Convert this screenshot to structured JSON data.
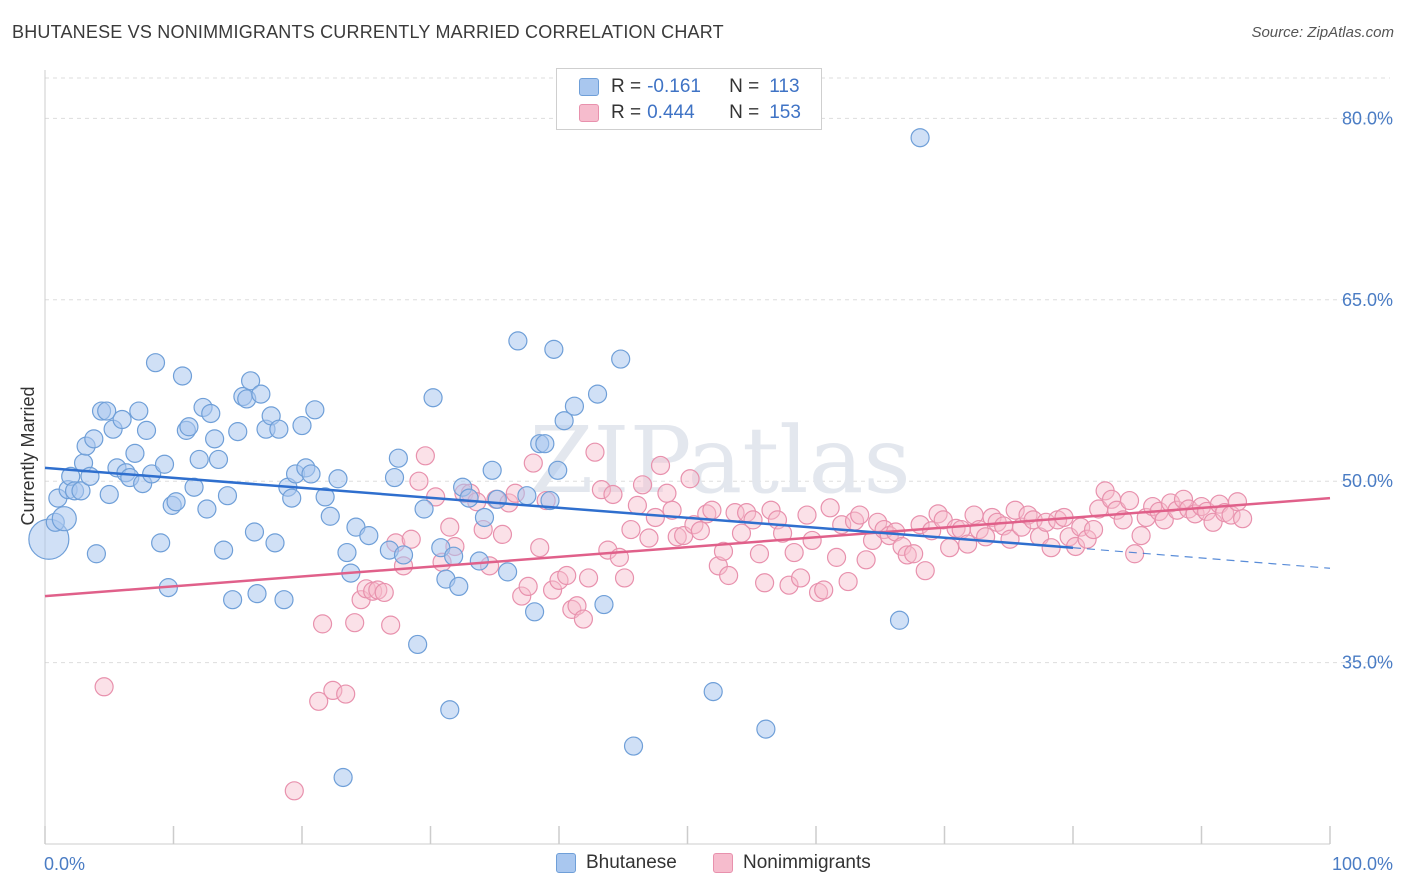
{
  "title": "BHUTANESE VS NONIMMIGRANTS CURRENTLY MARRIED CORRELATION CHART",
  "source": "Source: ZipAtlas.com",
  "watermark": "ZIPatlas",
  "colors": {
    "blue_fill": "#a9c7ef",
    "blue_stroke": "#6f9fd8",
    "blue_line": "#2f6fce",
    "pink_fill": "#f6bccd",
    "pink_stroke": "#e891ad",
    "pink_line": "#e0608a",
    "grid": "#dddddd",
    "axis_label": "#4a7cc4"
  },
  "legend_top": [
    {
      "series": "Bhutanese",
      "r_label": "R =",
      "r": "-0.161",
      "n_label": "N =",
      "n": "113"
    },
    {
      "series": "Nonimmigrants",
      "r_label": "R =",
      "r": "0.444",
      "n_label": "N =",
      "n": "153"
    }
  ],
  "chart_data": {
    "type": "scatter",
    "title": "BHUTANESE VS NONIMMIGRANTS CURRENTLY MARRIED CORRELATION CHART",
    "xlabel": "",
    "ylabel": "Currently Married",
    "xlim": [
      0,
      100
    ],
    "ylim": [
      20.0,
      84.0
    ],
    "x_tick_labels": [
      "0.0%",
      "100.0%"
    ],
    "y_ticks": [
      35.0,
      50.0,
      65.0,
      80.0
    ],
    "y_tick_labels": [
      "35.0%",
      "50.0%",
      "65.0%",
      "80.0%"
    ],
    "grid": true,
    "legend_position": "bottom",
    "series": [
      {
        "name": "Bhutanese",
        "trend": {
          "x": [
            0,
            80
          ],
          "y": [
            51.1,
            44.5
          ],
          "dashed_to": [
            100,
            42.8
          ]
        },
        "points": [
          [
            0.3,
            45.2
          ],
          [
            0.8,
            46.6
          ],
          [
            1.0,
            48.6
          ],
          [
            1.5,
            46.9
          ],
          [
            1.8,
            49.3
          ],
          [
            2.0,
            50.4
          ],
          [
            2.3,
            49.2
          ],
          [
            2.8,
            49.2
          ],
          [
            3.0,
            51.5
          ],
          [
            3.2,
            52.9
          ],
          [
            3.5,
            50.4
          ],
          [
            3.8,
            53.5
          ],
          [
            4.0,
            44.0
          ],
          [
            4.4,
            55.8
          ],
          [
            4.8,
            55.8
          ],
          [
            5.0,
            48.9
          ],
          [
            5.3,
            54.3
          ],
          [
            5.6,
            51.1
          ],
          [
            6.0,
            55.1
          ],
          [
            6.3,
            50.7
          ],
          [
            6.6,
            50.3
          ],
          [
            7.0,
            52.3
          ],
          [
            7.3,
            55.8
          ],
          [
            7.6,
            49.8
          ],
          [
            7.9,
            54.2
          ],
          [
            8.3,
            50.6
          ],
          [
            8.6,
            59.8
          ],
          [
            9.0,
            44.9
          ],
          [
            9.3,
            51.4
          ],
          [
            9.6,
            41.2
          ],
          [
            9.9,
            48.0
          ],
          [
            10.2,
            48.3
          ],
          [
            10.7,
            58.7
          ],
          [
            11.0,
            54.2
          ],
          [
            11.2,
            54.5
          ],
          [
            11.6,
            49.5
          ],
          [
            12.0,
            51.8
          ],
          [
            12.3,
            56.1
          ],
          [
            12.6,
            47.7
          ],
          [
            12.9,
            55.6
          ],
          [
            13.2,
            53.5
          ],
          [
            13.5,
            51.8
          ],
          [
            13.9,
            44.3
          ],
          [
            14.2,
            48.8
          ],
          [
            14.6,
            40.2
          ],
          [
            15.0,
            54.1
          ],
          [
            15.4,
            57.0
          ],
          [
            15.7,
            56.8
          ],
          [
            16.0,
            58.3
          ],
          [
            16.3,
            45.8
          ],
          [
            16.5,
            40.7
          ],
          [
            16.8,
            57.2
          ],
          [
            17.2,
            54.3
          ],
          [
            17.6,
            55.4
          ],
          [
            17.9,
            44.9
          ],
          [
            18.2,
            54.3
          ],
          [
            18.6,
            40.2
          ],
          [
            18.9,
            49.5
          ],
          [
            19.2,
            48.6
          ],
          [
            19.5,
            50.6
          ],
          [
            20.0,
            54.6
          ],
          [
            20.3,
            51.1
          ],
          [
            20.7,
            50.6
          ],
          [
            21.0,
            55.9
          ],
          [
            21.8,
            48.7
          ],
          [
            22.2,
            47.1
          ],
          [
            22.8,
            50.2
          ],
          [
            23.2,
            25.5
          ],
          [
            23.5,
            44.1
          ],
          [
            23.8,
            42.4
          ],
          [
            24.2,
            46.2
          ],
          [
            25.2,
            45.5
          ],
          [
            26.8,
            44.3
          ],
          [
            27.2,
            50.3
          ],
          [
            27.5,
            51.9
          ],
          [
            27.9,
            43.9
          ],
          [
            29.0,
            36.5
          ],
          [
            29.5,
            47.7
          ],
          [
            30.2,
            56.9
          ],
          [
            30.8,
            44.5
          ],
          [
            31.2,
            41.9
          ],
          [
            31.5,
            31.1
          ],
          [
            31.8,
            43.8
          ],
          [
            32.2,
            41.3
          ],
          [
            32.5,
            49.5
          ],
          [
            33.0,
            48.6
          ],
          [
            33.8,
            43.4
          ],
          [
            34.2,
            47.0
          ],
          [
            34.8,
            50.9
          ],
          [
            35.2,
            48.5
          ],
          [
            36.0,
            42.5
          ],
          [
            36.8,
            61.6
          ],
          [
            37.5,
            48.8
          ],
          [
            38.1,
            39.2
          ],
          [
            38.5,
            53.1
          ],
          [
            38.9,
            53.1
          ],
          [
            39.3,
            48.4
          ],
          [
            39.6,
            60.9
          ],
          [
            39.9,
            50.9
          ],
          [
            40.4,
            55.0
          ],
          [
            41.2,
            56.2
          ],
          [
            43.0,
            57.2
          ],
          [
            43.5,
            39.8
          ],
          [
            44.8,
            60.1
          ],
          [
            45.8,
            28.1
          ],
          [
            52.0,
            32.6
          ],
          [
            56.1,
            29.5
          ],
          [
            66.5,
            38.5
          ],
          [
            68.1,
            78.4
          ]
        ]
      },
      {
        "name": "Nonimmigrants",
        "trend": {
          "x": [
            0,
            100
          ],
          "y": [
            40.5,
            48.6
          ]
        },
        "points": [
          [
            4.6,
            33.0
          ],
          [
            19.4,
            24.4
          ],
          [
            21.3,
            31.8
          ],
          [
            21.6,
            38.2
          ],
          [
            22.4,
            32.7
          ],
          [
            23.4,
            32.4
          ],
          [
            24.1,
            38.3
          ],
          [
            24.6,
            40.2
          ],
          [
            25.0,
            41.1
          ],
          [
            25.5,
            40.9
          ],
          [
            25.9,
            41.0
          ],
          [
            26.4,
            40.8
          ],
          [
            26.9,
            38.1
          ],
          [
            27.3,
            44.9
          ],
          [
            27.9,
            43.0
          ],
          [
            28.5,
            45.2
          ],
          [
            29.1,
            50.0
          ],
          [
            29.6,
            52.1
          ],
          [
            30.4,
            48.7
          ],
          [
            30.9,
            43.3
          ],
          [
            31.5,
            46.2
          ],
          [
            31.9,
            44.6
          ],
          [
            32.6,
            49.0
          ],
          [
            33.1,
            49.0
          ],
          [
            33.6,
            48.3
          ],
          [
            34.1,
            46.0
          ],
          [
            34.6,
            43.0
          ],
          [
            35.1,
            48.5
          ],
          [
            35.6,
            45.6
          ],
          [
            36.1,
            48.2
          ],
          [
            36.6,
            49.0
          ],
          [
            37.1,
            40.5
          ],
          [
            37.6,
            41.3
          ],
          [
            38.0,
            51.5
          ],
          [
            38.5,
            44.5
          ],
          [
            39.0,
            48.4
          ],
          [
            39.5,
            41.0
          ],
          [
            40.0,
            41.8
          ],
          [
            40.6,
            42.2
          ],
          [
            41.0,
            39.4
          ],
          [
            41.4,
            39.7
          ],
          [
            41.9,
            38.6
          ],
          [
            42.3,
            42.0
          ],
          [
            42.8,
            52.4
          ],
          [
            43.3,
            49.3
          ],
          [
            43.8,
            44.3
          ],
          [
            44.2,
            48.9
          ],
          [
            44.7,
            43.7
          ],
          [
            45.1,
            42.0
          ],
          [
            45.6,
            46.0
          ],
          [
            46.1,
            48.0
          ],
          [
            46.5,
            49.7
          ],
          [
            47.0,
            45.3
          ],
          [
            47.5,
            47.0
          ],
          [
            47.9,
            51.3
          ],
          [
            48.4,
            49.0
          ],
          [
            48.8,
            47.6
          ],
          [
            49.2,
            45.4
          ],
          [
            49.7,
            45.5
          ],
          [
            50.2,
            50.2
          ],
          [
            50.5,
            46.4
          ],
          [
            51.0,
            45.9
          ],
          [
            51.5,
            47.3
          ],
          [
            51.9,
            47.6
          ],
          [
            52.4,
            43.0
          ],
          [
            52.8,
            44.2
          ],
          [
            53.2,
            42.2
          ],
          [
            53.7,
            47.4
          ],
          [
            54.2,
            45.7
          ],
          [
            54.6,
            47.4
          ],
          [
            55.1,
            46.8
          ],
          [
            55.6,
            44.0
          ],
          [
            56.0,
            41.6
          ],
          [
            56.5,
            47.6
          ],
          [
            57.0,
            46.8
          ],
          [
            57.4,
            45.7
          ],
          [
            57.9,
            41.4
          ],
          [
            58.3,
            44.1
          ],
          [
            58.8,
            42.0
          ],
          [
            59.3,
            47.2
          ],
          [
            59.7,
            45.1
          ],
          [
            60.2,
            40.8
          ],
          [
            60.6,
            41.0
          ],
          [
            61.1,
            47.8
          ],
          [
            61.6,
            43.7
          ],
          [
            62.0,
            46.4
          ],
          [
            62.5,
            41.7
          ],
          [
            63.0,
            46.7
          ],
          [
            63.4,
            47.2
          ],
          [
            63.9,
            43.5
          ],
          [
            64.4,
            45.1
          ],
          [
            64.8,
            46.6
          ],
          [
            65.3,
            46.0
          ],
          [
            65.7,
            45.5
          ],
          [
            66.2,
            45.8
          ],
          [
            66.7,
            44.6
          ],
          [
            67.1,
            43.9
          ],
          [
            67.6,
            44.0
          ],
          [
            68.1,
            46.4
          ],
          [
            68.5,
            42.6
          ],
          [
            69.0,
            45.9
          ],
          [
            69.5,
            47.3
          ],
          [
            69.9,
            46.8
          ],
          [
            70.4,
            44.5
          ],
          [
            70.9,
            46.1
          ],
          [
            71.3,
            46.0
          ],
          [
            71.8,
            44.8
          ],
          [
            72.3,
            47.2
          ],
          [
            72.7,
            46.0
          ],
          [
            73.2,
            45.4
          ],
          [
            73.7,
            47.0
          ],
          [
            74.1,
            46.6
          ],
          [
            74.6,
            46.3
          ],
          [
            75.1,
            45.2
          ],
          [
            75.5,
            47.6
          ],
          [
            76.0,
            46.2
          ],
          [
            76.5,
            47.2
          ],
          [
            76.9,
            46.8
          ],
          [
            77.4,
            45.4
          ],
          [
            77.9,
            46.6
          ],
          [
            78.3,
            44.5
          ],
          [
            78.8,
            46.8
          ],
          [
            79.3,
            47.0
          ],
          [
            79.7,
            45.4
          ],
          [
            80.2,
            44.6
          ],
          [
            80.6,
            46.2
          ],
          [
            81.1,
            45.2
          ],
          [
            81.6,
            46.0
          ],
          [
            82.0,
            47.7
          ],
          [
            82.5,
            49.2
          ],
          [
            83.0,
            48.5
          ],
          [
            83.4,
            47.6
          ],
          [
            83.9,
            46.8
          ],
          [
            84.4,
            48.4
          ],
          [
            84.8,
            44.0
          ],
          [
            85.3,
            45.5
          ],
          [
            85.7,
            47.0
          ],
          [
            86.2,
            47.9
          ],
          [
            86.7,
            47.5
          ],
          [
            87.1,
            46.8
          ],
          [
            87.6,
            48.2
          ],
          [
            88.1,
            47.6
          ],
          [
            88.6,
            48.5
          ],
          [
            89.0,
            47.7
          ],
          [
            89.5,
            47.3
          ],
          [
            90.0,
            47.9
          ],
          [
            90.4,
            47.5
          ],
          [
            90.9,
            46.6
          ],
          [
            91.4,
            48.1
          ],
          [
            91.8,
            47.4
          ],
          [
            92.3,
            47.2
          ],
          [
            92.8,
            48.3
          ],
          [
            93.2,
            46.9
          ]
        ]
      }
    ]
  },
  "legend_bottom": [
    {
      "label": "Bhutanese"
    },
    {
      "label": "Nonimmigrants"
    }
  ]
}
